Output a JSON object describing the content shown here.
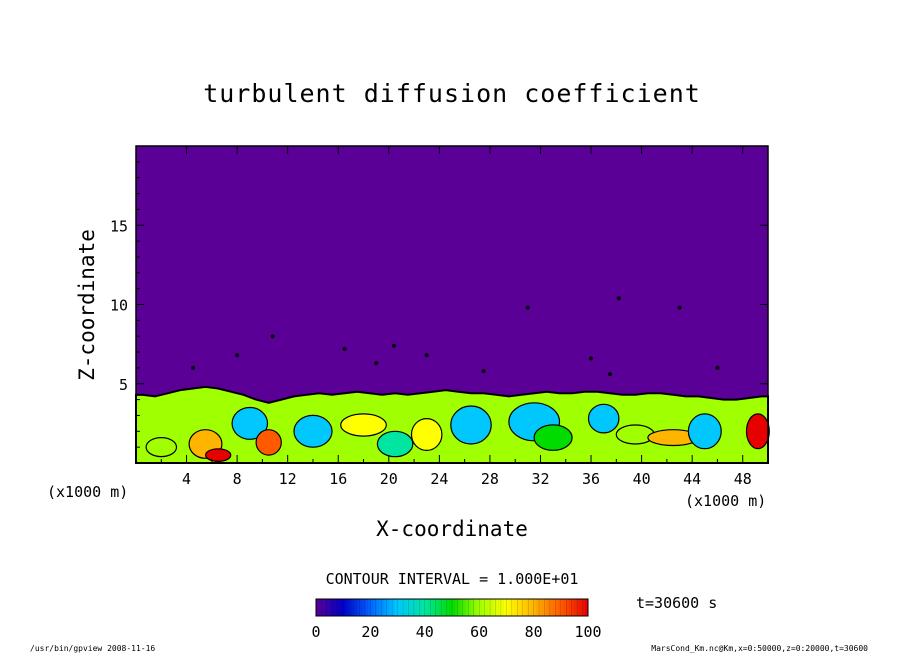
{
  "chart_data": {
    "type": "heatmap",
    "title": "turbulent diffusion coefficient",
    "xlabel": "X-coordinate",
    "ylabel": "Z-coordinate",
    "x_unit": "(x1000 m)",
    "y_unit": "(x1000 m)",
    "xlim": [
      0,
      50
    ],
    "ylim": [
      0,
      20
    ],
    "x_ticks": [
      4,
      8,
      12,
      16,
      20,
      24,
      28,
      32,
      36,
      40,
      44,
      48
    ],
    "y_ticks": [
      5,
      10,
      15
    ],
    "contour_interval_text": "CONTOUR INTERVAL = 1.000E+01",
    "colorbar": {
      "min": 0,
      "max": 100,
      "ticks": [
        0,
        20,
        40,
        60,
        80,
        100
      ],
      "colors": [
        "#5a0096",
        "#0000c8",
        "#0064ff",
        "#00c8ff",
        "#00e6a0",
        "#00dc00",
        "#a0ff00",
        "#ffff00",
        "#ffb400",
        "#ff5a00",
        "#e60000"
      ]
    },
    "time_label": "t=30600 s",
    "background_value": 0,
    "turbulent_layer_top": 4.5,
    "turbulent_columns": [
      {
        "x": 0.5,
        "top": 4.3
      },
      {
        "x": 1.5,
        "top": 4.2
      },
      {
        "x": 2.5,
        "top": 4.4
      },
      {
        "x": 3.5,
        "top": 4.6
      },
      {
        "x": 4.5,
        "top": 4.7
      },
      {
        "x": 5.5,
        "top": 4.8
      },
      {
        "x": 6.5,
        "top": 4.7
      },
      {
        "x": 7.5,
        "top": 4.5
      },
      {
        "x": 8.5,
        "top": 4.3
      },
      {
        "x": 9.5,
        "top": 4.0
      },
      {
        "x": 10.5,
        "top": 3.8
      },
      {
        "x": 11.5,
        "top": 4.0
      },
      {
        "x": 12.5,
        "top": 4.2
      },
      {
        "x": 13.5,
        "top": 4.3
      },
      {
        "x": 14.5,
        "top": 4.4
      },
      {
        "x": 15.5,
        "top": 4.3
      },
      {
        "x": 16.5,
        "top": 4.4
      },
      {
        "x": 17.5,
        "top": 4.5
      },
      {
        "x": 18.5,
        "top": 4.4
      },
      {
        "x": 19.5,
        "top": 4.3
      },
      {
        "x": 20.5,
        "top": 4.4
      },
      {
        "x": 21.5,
        "top": 4.3
      },
      {
        "x": 22.5,
        "top": 4.4
      },
      {
        "x": 23.5,
        "top": 4.5
      },
      {
        "x": 24.5,
        "top": 4.6
      },
      {
        "x": 25.5,
        "top": 4.5
      },
      {
        "x": 26.5,
        "top": 4.4
      },
      {
        "x": 27.5,
        "top": 4.4
      },
      {
        "x": 28.5,
        "top": 4.3
      },
      {
        "x": 29.5,
        "top": 4.2
      },
      {
        "x": 30.5,
        "top": 4.3
      },
      {
        "x": 31.5,
        "top": 4.4
      },
      {
        "x": 32.5,
        "top": 4.5
      },
      {
        "x": 33.5,
        "top": 4.4
      },
      {
        "x": 34.5,
        "top": 4.4
      },
      {
        "x": 35.5,
        "top": 4.5
      },
      {
        "x": 36.5,
        "top": 4.5
      },
      {
        "x": 37.5,
        "top": 4.4
      },
      {
        "x": 38.5,
        "top": 4.3
      },
      {
        "x": 39.5,
        "top": 4.3
      },
      {
        "x": 40.5,
        "top": 4.4
      },
      {
        "x": 41.5,
        "top": 4.4
      },
      {
        "x": 42.5,
        "top": 4.3
      },
      {
        "x": 43.5,
        "top": 4.2
      },
      {
        "x": 44.5,
        "top": 4.2
      },
      {
        "x": 45.5,
        "top": 4.1
      },
      {
        "x": 46.5,
        "top": 4.0
      },
      {
        "x": 47.5,
        "top": 4.0
      },
      {
        "x": 48.5,
        "top": 4.1
      },
      {
        "x": 49.5,
        "top": 4.2
      }
    ],
    "features": [
      {
        "x": 2,
        "z": 1.0,
        "rx": 1.2,
        "rz": 0.6,
        "value": 60
      },
      {
        "x": 5.5,
        "z": 1.2,
        "rx": 1.3,
        "rz": 0.9,
        "value": 75
      },
      {
        "x": 6.5,
        "z": 0.5,
        "rx": 1.0,
        "rz": 0.4,
        "value": 95
      },
      {
        "x": 9,
        "z": 2.5,
        "rx": 1.4,
        "rz": 1.0,
        "value": 25
      },
      {
        "x": 10.5,
        "z": 1.3,
        "rx": 1.0,
        "rz": 0.8,
        "value": 85
      },
      {
        "x": 14,
        "z": 2.0,
        "rx": 1.5,
        "rz": 1.0,
        "value": 30
      },
      {
        "x": 18,
        "z": 2.4,
        "rx": 1.8,
        "rz": 0.7,
        "value": 70
      },
      {
        "x": 20.5,
        "z": 1.2,
        "rx": 1.4,
        "rz": 0.8,
        "value": 40
      },
      {
        "x": 23,
        "z": 1.8,
        "rx": 1.2,
        "rz": 1.0,
        "value": 65
      },
      {
        "x": 26.5,
        "z": 2.4,
        "rx": 1.6,
        "rz": 1.2,
        "value": 30
      },
      {
        "x": 31.5,
        "z": 2.6,
        "rx": 2.0,
        "rz": 1.2,
        "value": 28
      },
      {
        "x": 33,
        "z": 1.6,
        "rx": 1.5,
        "rz": 0.8,
        "value": 50
      },
      {
        "x": 37,
        "z": 2.8,
        "rx": 1.2,
        "rz": 0.9,
        "value": 30
      },
      {
        "x": 39.5,
        "z": 1.8,
        "rx": 1.5,
        "rz": 0.6,
        "value": 60
      },
      {
        "x": 42.5,
        "z": 1.6,
        "rx": 2.0,
        "rz": 0.5,
        "value": 80
      },
      {
        "x": 45,
        "z": 2.0,
        "rx": 1.3,
        "rz": 1.1,
        "value": 25
      },
      {
        "x": 49.2,
        "z": 2.0,
        "rx": 0.9,
        "rz": 1.1,
        "value": 95
      }
    ],
    "specks": [
      {
        "x": 4.5,
        "z": 6.0
      },
      {
        "x": 8.0,
        "z": 6.8
      },
      {
        "x": 10.8,
        "z": 8.0
      },
      {
        "x": 19.0,
        "z": 6.3
      },
      {
        "x": 20.4,
        "z": 7.4
      },
      {
        "x": 23.0,
        "z": 6.8
      },
      {
        "x": 31.0,
        "z": 9.8
      },
      {
        "x": 36.0,
        "z": 6.6
      },
      {
        "x": 37.5,
        "z": 5.6
      },
      {
        "x": 38.2,
        "z": 10.4
      },
      {
        "x": 43.0,
        "z": 9.8
      },
      {
        "x": 46.0,
        "z": 6.0
      },
      {
        "x": 27.5,
        "z": 5.8
      },
      {
        "x": 16.5,
        "z": 7.2
      }
    ]
  },
  "footer": {
    "left": "/usr/bin/gpview  2008-11-16",
    "right": "MarsCond_Km.nc@Km,x=0:50000,z=0:20000,t=30600"
  }
}
